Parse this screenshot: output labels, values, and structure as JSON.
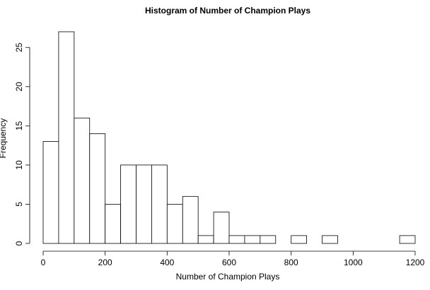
{
  "chart_data": {
    "type": "bar",
    "title": "Histogram of Number of Champion Plays",
    "xlabel": "Number of Champion Plays",
    "ylabel": "Frequency",
    "bin_width": 50,
    "bin_starts": [
      0,
      50,
      100,
      150,
      200,
      250,
      300,
      350,
      400,
      450,
      500,
      550,
      600,
      650,
      700,
      750,
      800,
      850,
      900,
      950,
      1000,
      1050,
      1100,
      1150
    ],
    "values": [
      13,
      27,
      16,
      14,
      5,
      10,
      10,
      10,
      5,
      6,
      1,
      4,
      1,
      1,
      1,
      0,
      1,
      0,
      1,
      0,
      0,
      0,
      0,
      1
    ],
    "xlim": [
      0,
      1200
    ],
    "ylim": [
      0,
      27
    ],
    "x_ticks": [
      0,
      200,
      400,
      600,
      800,
      1000,
      1200
    ],
    "y_ticks": [
      0,
      5,
      10,
      15,
      20,
      25
    ],
    "grid": false,
    "colors": {
      "bar_fill": "#ffffff",
      "bar_stroke": "#000000"
    }
  }
}
